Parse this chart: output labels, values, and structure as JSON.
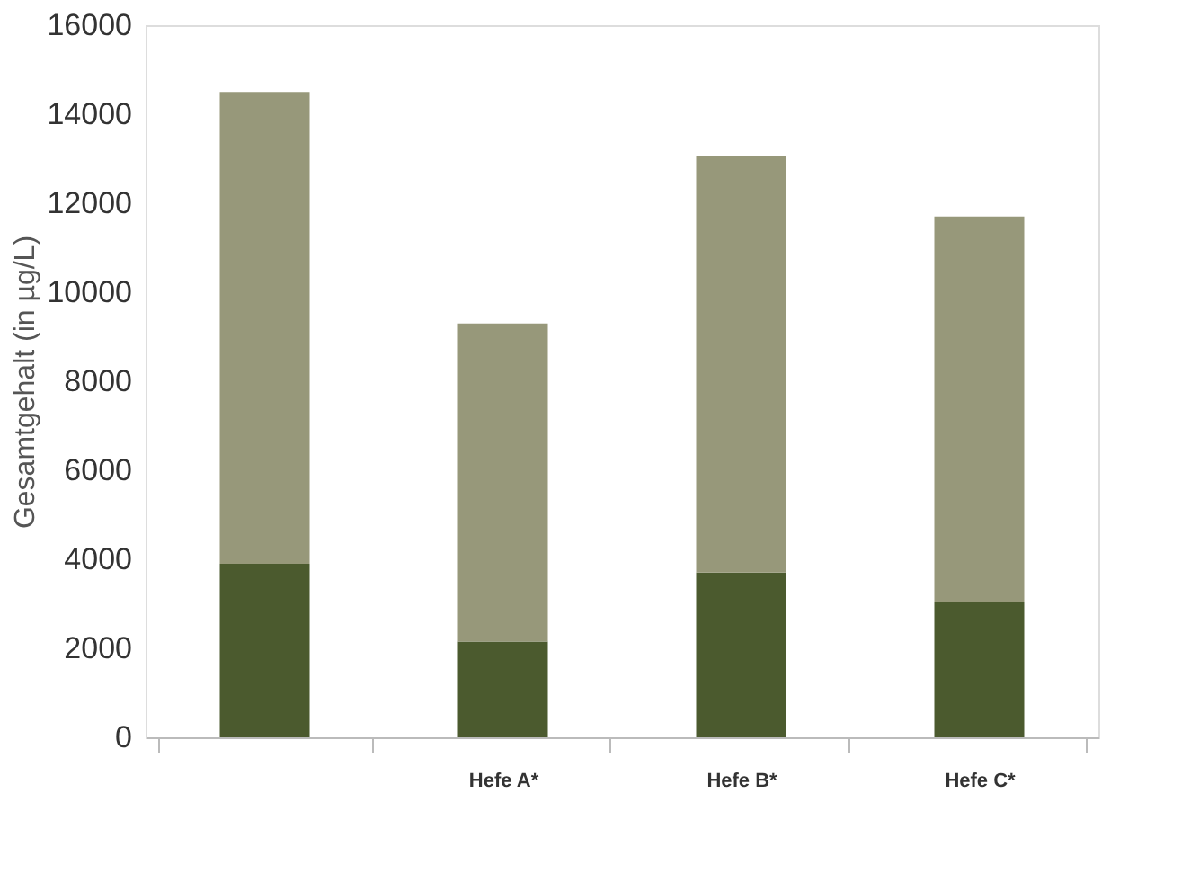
{
  "chart_data": {
    "type": "bar",
    "ylabel": "Gesamtgehalt (in µg/L)",
    "categories": [
      null,
      "Hefe A*",
      "Hefe B*",
      "Hefe C*"
    ],
    "stacked": true,
    "series": [
      {
        "color": "#4b5a2e",
        "values": [
          3900,
          2150,
          3700,
          3050
        ]
      },
      {
        "color": "#97987a",
        "values": [
          10600,
          7150,
          9350,
          8650
        ]
      }
    ],
    "ylim": [
      0,
      16000
    ],
    "yticks": [
      0,
      2000,
      4000,
      6000,
      8000,
      10000,
      12000,
      14000,
      16000
    ],
    "grid": false
  }
}
